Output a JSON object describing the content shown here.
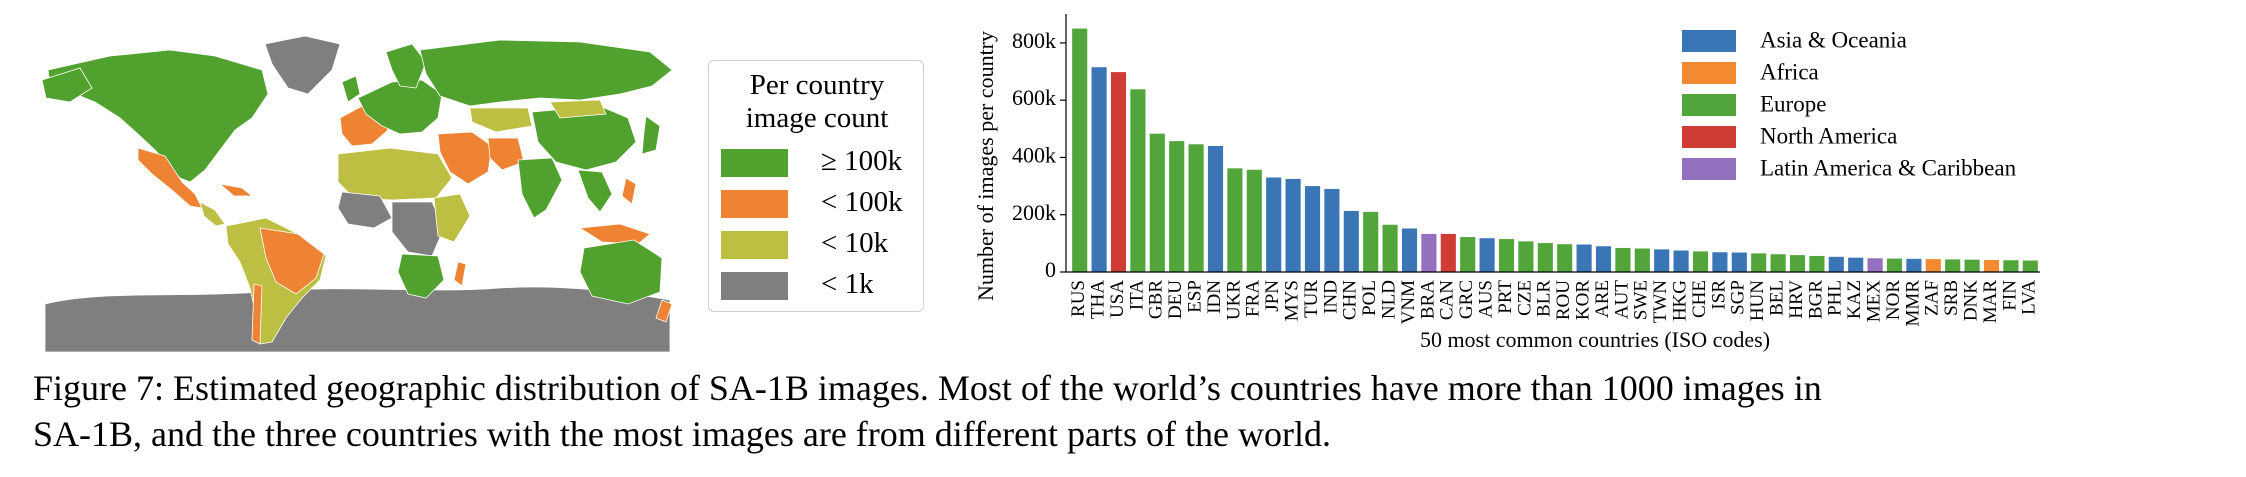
{
  "map": {
    "colors": {
      "ocean": "#ffffff",
      "high": "#50a12d",
      "medium": "#ee8334",
      "low": "#bdbf43",
      "verylow": "#7f7f7f"
    }
  },
  "map_legend": {
    "title_line1": "Per country",
    "title_line2": "image count",
    "items": [
      {
        "label": "≥ 100k",
        "color": "#50a12d"
      },
      {
        "label": "< 100k",
        "color": "#ee8334"
      },
      {
        "label": "< 10k",
        "color": "#bdbf43"
      },
      {
        "label": "< 1k",
        "color": "#7f7f7f"
      }
    ]
  },
  "chart_data": {
    "type": "bar",
    "xlabel": "50 most common countries (ISO codes)",
    "ylabel": "Number of images per country",
    "ylim": [
      0,
      880000
    ],
    "yticks": [
      {
        "value": 0,
        "label": "0"
      },
      {
        "value": 200000,
        "label": "200k"
      },
      {
        "value": 400000,
        "label": "400k"
      },
      {
        "value": 600000,
        "label": "600k"
      },
      {
        "value": 800000,
        "label": "800k"
      }
    ],
    "grid": false,
    "legend_position": "top-right",
    "legend": [
      {
        "name": "Asia & Oceania",
        "color": "#3a75b6"
      },
      {
        "name": "Africa",
        "color": "#f38a32"
      },
      {
        "name": "Europe",
        "color": "#52a53b"
      },
      {
        "name": "North America",
        "color": "#cf3c33"
      },
      {
        "name": "Latin America & Caribbean",
        "color": "#9371bf"
      }
    ],
    "categories": [
      "RUS",
      "THA",
      "USA",
      "ITA",
      "GBR",
      "DEU",
      "ESP",
      "IDN",
      "UKR",
      "FRA",
      "JPN",
      "MYS",
      "TUR",
      "IND",
      "CHN",
      "POL",
      "NLD",
      "VNM",
      "BRA",
      "CAN",
      "GRC",
      "AUS",
      "PRT",
      "CZE",
      "BLR",
      "ROU",
      "KOR",
      "ARE",
      "AUT",
      "SWE",
      "TWN",
      "HKG",
      "CHE",
      "ISR",
      "SGP",
      "HUN",
      "BEL",
      "HRV",
      "BGR",
      "PHL",
      "KAZ",
      "MEX",
      "NOR",
      "MMR",
      "ZAF",
      "SRB",
      "DNK",
      "MAR",
      "FIN",
      "LVA"
    ],
    "regions": [
      "Europe",
      "Asia & Oceania",
      "North America",
      "Europe",
      "Europe",
      "Europe",
      "Europe",
      "Asia & Oceania",
      "Europe",
      "Europe",
      "Asia & Oceania",
      "Asia & Oceania",
      "Asia & Oceania",
      "Asia & Oceania",
      "Asia & Oceania",
      "Europe",
      "Europe",
      "Asia & Oceania",
      "Latin America & Caribbean",
      "North America",
      "Europe",
      "Asia & Oceania",
      "Europe",
      "Europe",
      "Europe",
      "Europe",
      "Asia & Oceania",
      "Asia & Oceania",
      "Europe",
      "Europe",
      "Asia & Oceania",
      "Asia & Oceania",
      "Europe",
      "Asia & Oceania",
      "Asia & Oceania",
      "Europe",
      "Europe",
      "Europe",
      "Europe",
      "Asia & Oceania",
      "Asia & Oceania",
      "Latin America & Caribbean",
      "Europe",
      "Asia & Oceania",
      "Africa",
      "Europe",
      "Europe",
      "Africa",
      "Europe",
      "Europe"
    ],
    "values": [
      850000,
      715000,
      698000,
      638000,
      483000,
      457000,
      446000,
      440000,
      362000,
      357000,
      330000,
      325000,
      300000,
      290000,
      213000,
      210000,
      165000,
      152000,
      133000,
      133000,
      122000,
      118000,
      115000,
      107000,
      101000,
      97000,
      96000,
      90000,
      84000,
      82000,
      79000,
      75000,
      72000,
      69000,
      68000,
      65000,
      62000,
      59000,
      56000,
      53000,
      50000,
      48000,
      47000,
      46000,
      45000,
      44000,
      43000,
      42000,
      41000,
      40000
    ]
  },
  "caption": {
    "line1": "Figure 7: Estimated geographic distribution of SA-1B images. Most of the world’s countries have more than 1000 images in",
    "line2": "SA-1B, and the three countries with the most images are from different parts of the world."
  }
}
